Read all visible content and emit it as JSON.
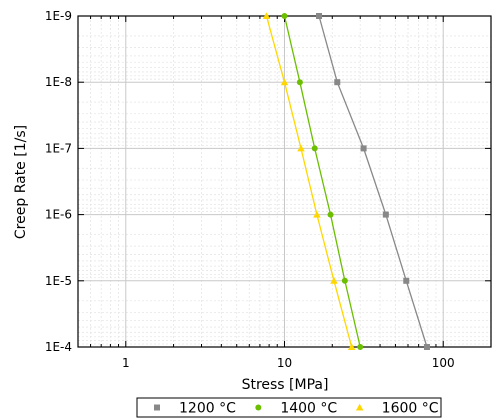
{
  "chart_data": {
    "type": "line",
    "xlabel": "Stress [MPa]",
    "ylabel": "Creep Rate [1/s]",
    "x_scale": "log",
    "y_scale": "log",
    "xlim": [
      0.5,
      200
    ],
    "ylim": [
      1e-09,
      0.0001
    ],
    "y_axis_inverted": true,
    "x_ticks": [
      {
        "value": 1,
        "label": "1"
      },
      {
        "value": 10,
        "label": "10"
      },
      {
        "value": 100,
        "label": "100"
      }
    ],
    "y_ticks": [
      {
        "value": 1e-09,
        "label": "1E-9"
      },
      {
        "value": 1e-08,
        "label": "1E-8"
      },
      {
        "value": 1e-07,
        "label": "1E-7"
      },
      {
        "value": 1e-06,
        "label": "1E-6"
      },
      {
        "value": 1e-05,
        "label": "1E-5"
      },
      {
        "value": 0.0001,
        "label": "1E-4"
      }
    ],
    "grid": true,
    "legend_position": "bottom",
    "series": [
      {
        "name": "1200 °C",
        "color": "#888888",
        "marker": "square",
        "x": [
          16.5,
          21.5,
          31.5,
          43.5,
          58.5,
          79
        ],
        "y": [
          1e-09,
          1e-08,
          1e-07,
          1e-06,
          1e-05,
          0.0001
        ]
      },
      {
        "name": "1400 °C",
        "color": "#6BBF00",
        "marker": "circle",
        "x": [
          10,
          12.5,
          15.5,
          19.5,
          24,
          30
        ],
        "y": [
          1e-09,
          1e-08,
          1e-07,
          1e-06,
          1e-05,
          0.0001
        ]
      },
      {
        "name": "1600 °C",
        "color": "#FFD700",
        "marker": "triangle",
        "x": [
          7.7,
          10,
          12.7,
          16,
          20.5,
          26.5
        ],
        "y": [
          1e-09,
          1e-08,
          1e-07,
          1e-06,
          1e-05,
          0.0001
        ]
      }
    ]
  }
}
